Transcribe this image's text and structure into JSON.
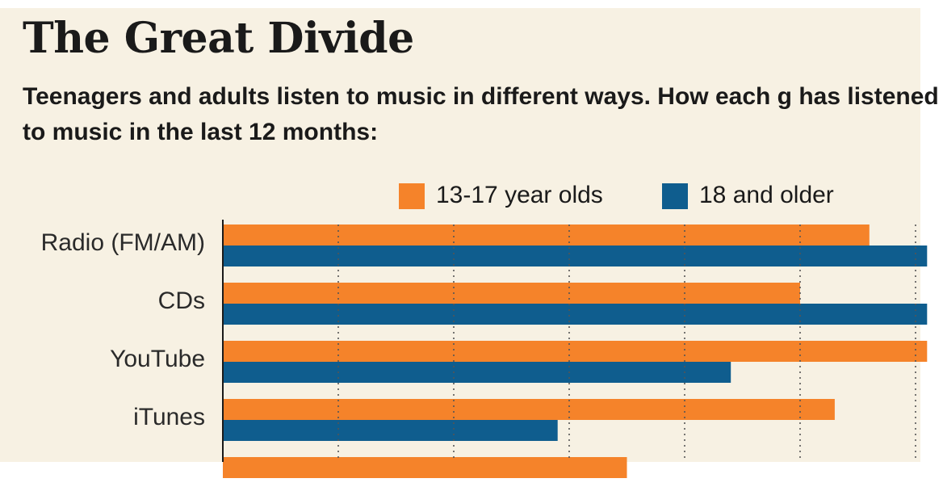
{
  "title": "The Great Divide",
  "subtitle": "Teenagers and adults listen to music in different ways. How each g has listened to music in the last 12 months:",
  "colors": {
    "background": "#f7f1e3",
    "teen": "#f5832a",
    "adult": "#0f5d8e",
    "grid": "#555555"
  },
  "chart_data": {
    "type": "bar",
    "orientation": "horizontal",
    "categories": [
      "Radio (FM/AM)",
      "CDs",
      "YouTube",
      "iTunes",
      ""
    ],
    "series": [
      {
        "name": "13-17 year olds",
        "values": [
          56,
          50,
          61,
          53,
          35
        ]
      },
      {
        "name": "18 and older",
        "values": [
          61,
          61,
          44,
          29,
          null
        ]
      }
    ],
    "xlim": [
      0,
      60
    ],
    "xlabel": "",
    "ylabel": "",
    "grid": true,
    "legend_position": "top"
  }
}
